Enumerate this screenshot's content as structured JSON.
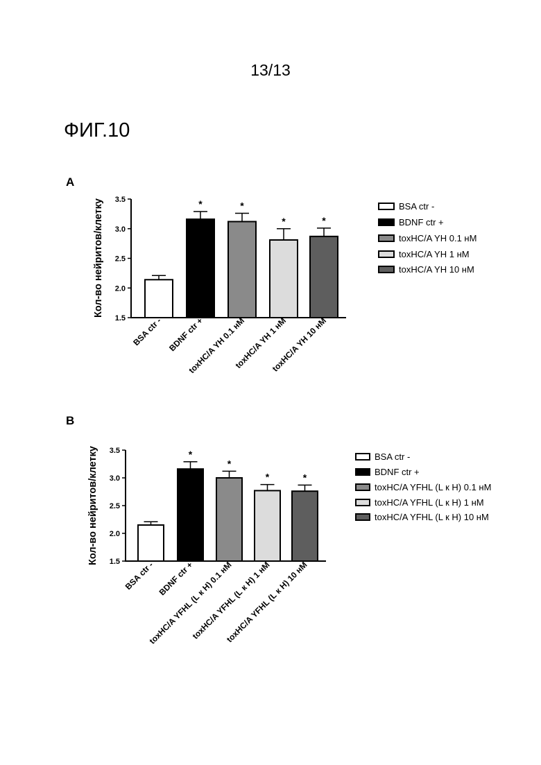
{
  "page_number": "13/13",
  "figure_title": "ФИГ.10",
  "colors": {
    "fills": [
      "#ffffff",
      "#000000",
      "#8a8a8a",
      "#dcdcdc",
      "#5e5e5e"
    ]
  },
  "chart_data": [
    {
      "panel": "A",
      "type": "bar",
      "ylabel": "Кол-во нейритов/клетку",
      "xlabel": "",
      "ylim": [
        1.5,
        3.5
      ],
      "yticks": [
        "1.5",
        "2.0",
        "2.5",
        "3.0",
        "3.5"
      ],
      "categories": [
        "BSA ctr -",
        "BDNF ctr +",
        "toxHC/A YH 0.1 нМ",
        "toxHC/A YH 1 нМ",
        "toxHC/A YH 10 нМ"
      ],
      "values": [
        2.14,
        3.16,
        3.12,
        2.81,
        2.87
      ],
      "errors": [
        0.07,
        0.13,
        0.14,
        0.19,
        0.14
      ],
      "significance": [
        "",
        "*",
        "*",
        "*",
        "*"
      ],
      "legend": [
        "BSA ctr -",
        "BDNF ctr +",
        "toxHC/A YH 0.1 нМ",
        "toxHC/A YH 1 нМ",
        "toxHC/A YH 10 нМ"
      ],
      "legend_position": "right",
      "grid": false
    },
    {
      "panel": "B",
      "type": "bar",
      "ylabel": "Кол-во нейритов/клетку",
      "xlabel": "",
      "ylim": [
        1.5,
        3.5
      ],
      "yticks": [
        "1.5",
        "2.0",
        "2.5",
        "3.0",
        "3.5"
      ],
      "categories": [
        "BSA ctr -",
        "BDNF ctr +",
        "toxHC/A YFHL (L к H) 0.1 нМ",
        "toxHC/A YFHL (L к H) 1 нМ",
        "toxHC/A YFHL (L к H) 10 нМ"
      ],
      "values": [
        2.15,
        3.16,
        3.0,
        2.77,
        2.76
      ],
      "errors": [
        0.06,
        0.13,
        0.12,
        0.11,
        0.11
      ],
      "significance": [
        "",
        "*",
        "*",
        "*",
        "*"
      ],
      "legend": [
        "BSA ctr -",
        "BDNF ctr +",
        "toxHC/A YFHL (L к H) 0.1 нМ",
        "toxHC/A YFHL (L к H) 1 нМ",
        "toxHC/A YFHL (L к H) 10 нМ"
      ],
      "legend_position": "right",
      "grid": false
    }
  ]
}
